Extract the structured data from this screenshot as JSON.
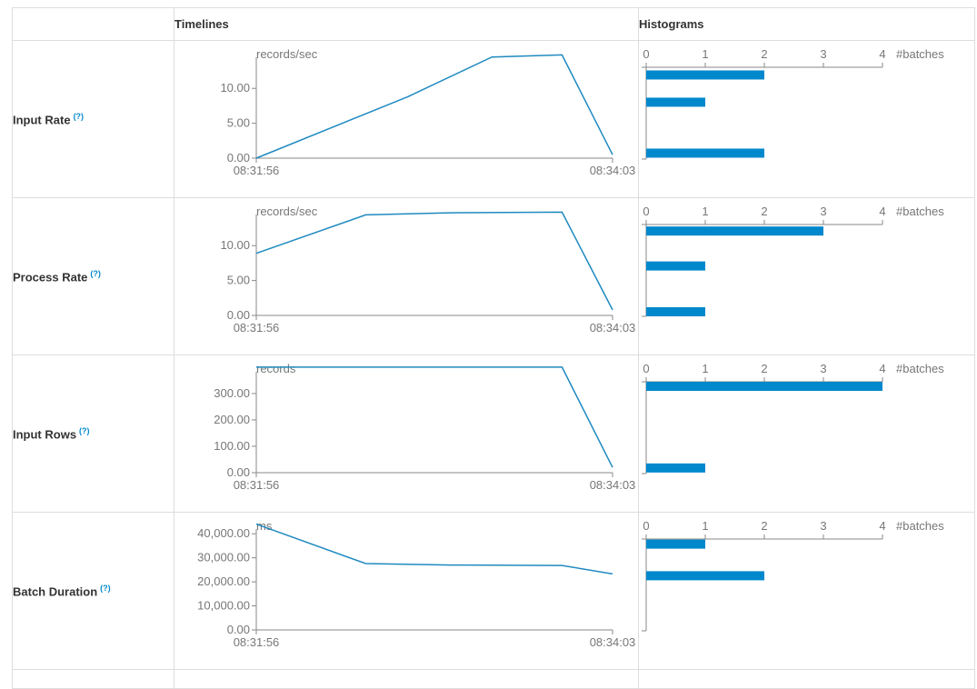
{
  "header": {
    "timelines_label": "Timelines",
    "histograms_label": "Histograms"
  },
  "help_glyph": "(?)",
  "colors": {
    "series": "#1f8ac0",
    "bar": "#0088cc",
    "axis": "#888888",
    "text": "#777777"
  },
  "chart_data": [
    {
      "id": "input-rate",
      "metric": "Input Rate",
      "timeline": {
        "type": "line",
        "unit": "records/sec",
        "x": [
          "08:31:56",
          "08:32:50",
          "08:33:20",
          "08:33:45",
          "08:34:03"
        ],
        "xticks": [
          "08:31:56",
          "08:34:03"
        ],
        "values": [
          0,
          8.8,
          14.5,
          14.8,
          0.5
        ],
        "yticks": [
          0,
          5,
          10
        ],
        "ytick_labels": [
          "0.00",
          "5.00",
          "10.00"
        ],
        "ylim": [
          0,
          15.5
        ]
      },
      "histogram": {
        "type": "bar",
        "xlabel": "#batches",
        "xticks": [
          0,
          1,
          2,
          3,
          4
        ],
        "bins": [
          14.2,
          9.6,
          1.0
        ],
        "counts": [
          2,
          1,
          2
        ]
      }
    },
    {
      "id": "process-rate",
      "metric": "Process Rate",
      "timeline": {
        "type": "line",
        "unit": "records/sec",
        "x": [
          "08:31:56",
          "08:32:35",
          "08:33:05",
          "08:33:45",
          "08:34:03"
        ],
        "xticks": [
          "08:31:56",
          "08:34:03"
        ],
        "values": [
          8.9,
          14.4,
          14.7,
          14.8,
          0.8
        ],
        "yticks": [
          0,
          5,
          10
        ],
        "ytick_labels": [
          "0.00",
          "5.00",
          "10.00"
        ],
        "ylim": [
          0,
          15.5
        ]
      },
      "histogram": {
        "type": "bar",
        "xlabel": "#batches",
        "xticks": [
          0,
          1,
          2,
          3,
          4
        ],
        "bins": [
          14.4,
          8.5,
          0.7
        ],
        "counts": [
          3,
          1,
          1
        ]
      }
    },
    {
      "id": "input-rows",
      "metric": "Input Rows",
      "timeline": {
        "type": "line",
        "unit": "records",
        "x": [
          "08:31:56",
          "08:32:35",
          "08:33:05",
          "08:33:45",
          "08:34:03"
        ],
        "xticks": [
          "08:31:56",
          "08:34:03"
        ],
        "values": [
          400,
          400,
          400,
          400,
          20
        ],
        "yticks": [
          0,
          100,
          200,
          300
        ],
        "ytick_labels": [
          "0.00",
          "100.00",
          "200.00",
          "300.00"
        ],
        "ylim": [
          0,
          410
        ]
      },
      "histogram": {
        "type": "bar",
        "xlabel": "#batches",
        "xticks": [
          0,
          1,
          2,
          3,
          4
        ],
        "bins": [
          395,
          25
        ],
        "counts": [
          4,
          1
        ]
      }
    },
    {
      "id": "batch-duration",
      "metric": "Batch Duration",
      "timeline": {
        "type": "line",
        "unit": "ms",
        "x": [
          "08:31:56",
          "08:32:35",
          "08:33:05",
          "08:33:45",
          "08:34:03"
        ],
        "xticks": [
          "08:31:56",
          "08:34:03"
        ],
        "values": [
          44000,
          27600,
          27000,
          26800,
          23300
        ],
        "yticks": [
          0,
          10000,
          20000,
          30000,
          40000
        ],
        "ytick_labels": [
          "0.00",
          "10,000.00",
          "20,000.00",
          "30,000.00",
          "40,000.00"
        ],
        "ylim": [
          0,
          45000
        ]
      },
      "histogram": {
        "type": "bar",
        "xlabel": "#batches",
        "xticks": [
          0,
          1,
          2,
          3,
          4
        ],
        "bins": [
          42500,
          27000
        ],
        "counts": [
          1,
          2
        ]
      }
    }
  ]
}
